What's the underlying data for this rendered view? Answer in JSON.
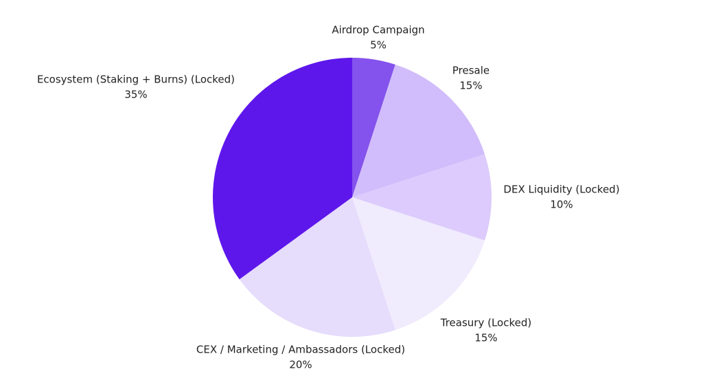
{
  "chart_data": {
    "type": "pie",
    "categories": [
      "Airdrop Campaign",
      "Presale",
      "DEX Liquidity (Locked)",
      "Treasury (Locked)",
      "CEX / Marketing / Ambassadors (Locked)",
      "Ecosystem (Staking + Burns) (Locked)"
    ],
    "values": [
      5,
      15,
      10,
      15,
      20,
      35
    ],
    "value_labels": [
      "5%",
      "15%",
      "10%",
      "15%",
      "20%",
      "35%"
    ],
    "colors": [
      "#8452ec",
      "#d1bdfb",
      "#dccbfc",
      "#f0ebfd",
      "#e6dcfb",
      "#5e17eb"
    ]
  }
}
